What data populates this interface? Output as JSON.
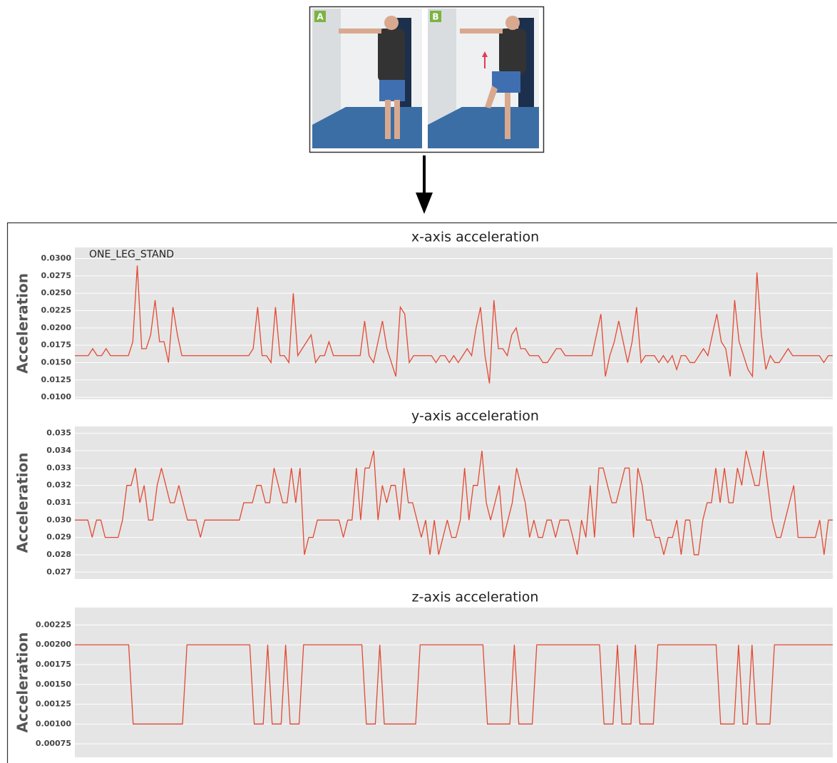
{
  "image": {
    "panel_labels": [
      "A",
      "B"
    ]
  },
  "chart_data": [
    {
      "type": "line",
      "title": "x-axis acceleration",
      "ylabel": "Acceleration",
      "annotation": "ONE_LEG_STAND",
      "color": "#e24a33",
      "grid": true,
      "background": "#e5e5e5",
      "ylim": [
        0.0097,
        0.0316
      ],
      "yticks": [
        {
          "value": 0.01,
          "label": "0.0100"
        },
        0.0125,
        {
          "value": 0.015,
          "label": "0.0150"
        },
        0.0175,
        {
          "value": 0.02,
          "label": "0.0200"
        },
        0.0225,
        {
          "value": 0.025,
          "label": "0.0250"
        },
        0.0275,
        {
          "value": 0.03,
          "label": "0.0300"
        }
      ],
      "values": [
        0.016,
        0.016,
        0.016,
        0.016,
        0.017,
        0.016,
        0.016,
        0.017,
        0.016,
        0.016,
        0.016,
        0.016,
        0.016,
        0.018,
        0.029,
        0.017,
        0.017,
        0.019,
        0.024,
        0.018,
        0.018,
        0.015,
        0.023,
        0.019,
        0.016,
        0.016,
        0.016,
        0.016,
        0.016,
        0.016,
        0.016,
        0.016,
        0.016,
        0.016,
        0.016,
        0.016,
        0.016,
        0.016,
        0.016,
        0.016,
        0.017,
        0.023,
        0.016,
        0.016,
        0.015,
        0.023,
        0.016,
        0.016,
        0.015,
        0.025,
        0.016,
        0.017,
        0.018,
        0.019,
        0.015,
        0.016,
        0.016,
        0.018,
        0.016,
        0.016,
        0.016,
        0.016,
        0.016,
        0.016,
        0.016,
        0.021,
        0.016,
        0.015,
        0.018,
        0.021,
        0.017,
        0.015,
        0.013,
        0.023,
        0.022,
        0.015,
        0.016,
        0.016,
        0.016,
        0.016,
        0.016,
        0.015,
        0.016,
        0.016,
        0.015,
        0.016,
        0.015,
        0.016,
        0.017,
        0.016,
        0.02,
        0.023,
        0.016,
        0.012,
        0.024,
        0.017,
        0.017,
        0.016,
        0.019,
        0.02,
        0.017,
        0.017,
        0.016,
        0.016,
        0.016,
        0.015,
        0.015,
        0.016,
        0.017,
        0.017,
        0.016,
        0.016,
        0.016,
        0.016,
        0.016,
        0.016,
        0.016,
        0.019,
        0.022,
        0.013,
        0.016,
        0.018,
        0.021,
        0.018,
        0.015,
        0.018,
        0.023,
        0.015,
        0.016,
        0.016,
        0.016,
        0.015,
        0.016,
        0.015,
        0.016,
        0.014,
        0.016,
        0.016,
        0.015,
        0.015,
        0.016,
        0.017,
        0.016,
        0.019,
        0.022,
        0.018,
        0.017,
        0.013,
        0.024,
        0.018,
        0.016,
        0.014,
        0.013,
        0.028,
        0.019,
        0.014,
        0.016,
        0.015,
        0.015,
        0.016,
        0.017,
        0.016,
        0.016,
        0.016,
        0.016,
        0.016,
        0.016,
        0.016,
        0.015,
        0.016,
        0.016
      ]
    },
    {
      "type": "line",
      "title": "y-axis acceleration",
      "ylabel": "Acceleration",
      "color": "#e24a33",
      "grid": true,
      "background": "#e5e5e5",
      "ylim": [
        0.0266,
        0.0354
      ],
      "yticks": [
        0.027,
        0.028,
        0.029,
        {
          "value": 0.03,
          "label": "0.030"
        },
        0.031,
        0.032,
        0.033,
        0.034,
        0.035
      ],
      "values": [
        0.03,
        0.03,
        0.03,
        0.03,
        0.029,
        0.03,
        0.03,
        0.029,
        0.029,
        0.029,
        0.029,
        0.03,
        0.032,
        0.032,
        0.033,
        0.031,
        0.032,
        0.03,
        0.03,
        0.032,
        0.033,
        0.032,
        0.031,
        0.031,
        0.032,
        0.031,
        0.03,
        0.03,
        0.03,
        0.029,
        0.03,
        0.03,
        0.03,
        0.03,
        0.03,
        0.03,
        0.03,
        0.03,
        0.03,
        0.031,
        0.031,
        0.031,
        0.032,
        0.032,
        0.031,
        0.031,
        0.033,
        0.032,
        0.031,
        0.031,
        0.033,
        0.031,
        0.033,
        0.028,
        0.029,
        0.029,
        0.03,
        0.03,
        0.03,
        0.03,
        0.03,
        0.03,
        0.029,
        0.03,
        0.03,
        0.033,
        0.03,
        0.033,
        0.033,
        0.034,
        0.03,
        0.032,
        0.031,
        0.032,
        0.032,
        0.03,
        0.033,
        0.031,
        0.031,
        0.03,
        0.029,
        0.03,
        0.028,
        0.03,
        0.028,
        0.029,
        0.03,
        0.029,
        0.029,
        0.03,
        0.033,
        0.03,
        0.032,
        0.032,
        0.034,
        0.031,
        0.03,
        0.031,
        0.032,
        0.029,
        0.03,
        0.031,
        0.033,
        0.032,
        0.031,
        0.029,
        0.03,
        0.029,
        0.029,
        0.03,
        0.03,
        0.029,
        0.03,
        0.03,
        0.03,
        0.029,
        0.028,
        0.03,
        0.029,
        0.032,
        0.029,
        0.033,
        0.033,
        0.032,
        0.031,
        0.031,
        0.032,
        0.033,
        0.033,
        0.029,
        0.033,
        0.032,
        0.03,
        0.03,
        0.029,
        0.029,
        0.028,
        0.029,
        0.029,
        0.03,
        0.028,
        0.03,
        0.03,
        0.028,
        0.028,
        0.03,
        0.031,
        0.031,
        0.033,
        0.031,
        0.033,
        0.031,
        0.031,
        0.033,
        0.032,
        0.034,
        0.033,
        0.032,
        0.032,
        0.034,
        0.032,
        0.03,
        0.029,
        0.029,
        0.03,
        0.031,
        0.032,
        0.029,
        0.029,
        0.029,
        0.029,
        0.029,
        0.03,
        0.028,
        0.03,
        0.03
      ]
    },
    {
      "type": "line",
      "title": "z-axis acceleration",
      "ylabel": "Acceleration",
      "color": "#e24a33",
      "grid": true,
      "background": "#e5e5e5",
      "ylim": [
        0.00058,
        0.00247
      ],
      "yticks": [
        0.00075,
        {
          "value": 0.001,
          "label": "0.00100"
        },
        0.00125,
        {
          "value": 0.0015,
          "label": "0.00150"
        },
        0.00175,
        {
          "value": 0.002,
          "label": "0.00200"
        },
        0.00225
      ],
      "values": [
        0.002,
        0.002,
        0.002,
        0.002,
        0.002,
        0.002,
        0.002,
        0.002,
        0.002,
        0.002,
        0.002,
        0.002,
        0.002,
        0.001,
        0.001,
        0.001,
        0.001,
        0.001,
        0.001,
        0.001,
        0.001,
        0.001,
        0.001,
        0.001,
        0.001,
        0.002,
        0.002,
        0.002,
        0.002,
        0.002,
        0.002,
        0.002,
        0.002,
        0.002,
        0.002,
        0.002,
        0.002,
        0.002,
        0.002,
        0.002,
        0.001,
        0.001,
        0.001,
        0.002,
        0.001,
        0.001,
        0.001,
        0.002,
        0.001,
        0.001,
        0.001,
        0.002,
        0.002,
        0.002,
        0.002,
        0.002,
        0.002,
        0.002,
        0.002,
        0.002,
        0.002,
        0.002,
        0.002,
        0.002,
        0.002,
        0.001,
        0.001,
        0.001,
        0.002,
        0.001,
        0.001,
        0.001,
        0.001,
        0.001,
        0.001,
        0.001,
        0.001,
        0.002,
        0.002,
        0.002,
        0.002,
        0.002,
        0.002,
        0.002,
        0.002,
        0.002,
        0.002,
        0.002,
        0.002,
        0.002,
        0.002,
        0.002,
        0.001,
        0.001,
        0.001,
        0.001,
        0.001,
        0.001,
        0.002,
        0.001,
        0.001,
        0.001,
        0.001,
        0.002,
        0.002,
        0.002,
        0.002,
        0.002,
        0.002,
        0.002,
        0.002,
        0.002,
        0.002,
        0.002,
        0.002,
        0.002,
        0.002,
        0.002,
        0.001,
        0.001,
        0.001,
        0.002,
        0.001,
        0.001,
        0.001,
        0.002,
        0.001,
        0.001,
        0.001,
        0.001,
        0.002,
        0.002,
        0.002,
        0.002,
        0.002,
        0.002,
        0.002,
        0.002,
        0.002,
        0.002,
        0.002,
        0.002,
        0.002,
        0.002,
        0.001,
        0.001,
        0.001,
        0.001,
        0.002,
        0.001,
        0.001,
        0.002,
        0.001,
        0.001,
        0.001,
        0.001,
        0.002,
        0.002,
        0.002,
        0.002,
        0.002,
        0.002,
        0.002,
        0.002,
        0.002,
        0.002,
        0.002,
        0.002,
        0.002,
        0.002
      ]
    }
  ]
}
